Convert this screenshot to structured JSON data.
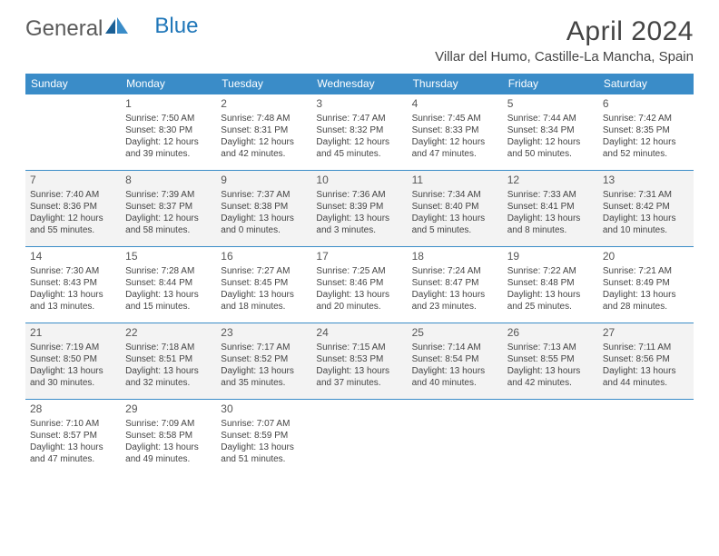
{
  "brand": {
    "part1": "General",
    "part2": "Blue"
  },
  "title": "April 2024",
  "location": "Villar del Humo, Castille-La Mancha, Spain",
  "colors": {
    "header_bg": "#3a8cc8",
    "header_text": "#ffffff",
    "text": "#444444",
    "shade_bg": "#f3f3f3",
    "logo_gray": "#5a5a5a",
    "logo_blue": "#2077b9",
    "page_bg": "#ffffff"
  },
  "calendar": {
    "day_headers": [
      "Sunday",
      "Monday",
      "Tuesday",
      "Wednesday",
      "Thursday",
      "Friday",
      "Saturday"
    ],
    "weeks": [
      {
        "shade": false,
        "cells": [
          {
            "num": "",
            "sunrise": "",
            "sunset": "",
            "daylight": ""
          },
          {
            "num": "1",
            "sunrise": "Sunrise: 7:50 AM",
            "sunset": "Sunset: 8:30 PM",
            "daylight": "Daylight: 12 hours and 39 minutes."
          },
          {
            "num": "2",
            "sunrise": "Sunrise: 7:48 AM",
            "sunset": "Sunset: 8:31 PM",
            "daylight": "Daylight: 12 hours and 42 minutes."
          },
          {
            "num": "3",
            "sunrise": "Sunrise: 7:47 AM",
            "sunset": "Sunset: 8:32 PM",
            "daylight": "Daylight: 12 hours and 45 minutes."
          },
          {
            "num": "4",
            "sunrise": "Sunrise: 7:45 AM",
            "sunset": "Sunset: 8:33 PM",
            "daylight": "Daylight: 12 hours and 47 minutes."
          },
          {
            "num": "5",
            "sunrise": "Sunrise: 7:44 AM",
            "sunset": "Sunset: 8:34 PM",
            "daylight": "Daylight: 12 hours and 50 minutes."
          },
          {
            "num": "6",
            "sunrise": "Sunrise: 7:42 AM",
            "sunset": "Sunset: 8:35 PM",
            "daylight": "Daylight: 12 hours and 52 minutes."
          }
        ]
      },
      {
        "shade": true,
        "cells": [
          {
            "num": "7",
            "sunrise": "Sunrise: 7:40 AM",
            "sunset": "Sunset: 8:36 PM",
            "daylight": "Daylight: 12 hours and 55 minutes."
          },
          {
            "num": "8",
            "sunrise": "Sunrise: 7:39 AM",
            "sunset": "Sunset: 8:37 PM",
            "daylight": "Daylight: 12 hours and 58 minutes."
          },
          {
            "num": "9",
            "sunrise": "Sunrise: 7:37 AM",
            "sunset": "Sunset: 8:38 PM",
            "daylight": "Daylight: 13 hours and 0 minutes."
          },
          {
            "num": "10",
            "sunrise": "Sunrise: 7:36 AM",
            "sunset": "Sunset: 8:39 PM",
            "daylight": "Daylight: 13 hours and 3 minutes."
          },
          {
            "num": "11",
            "sunrise": "Sunrise: 7:34 AM",
            "sunset": "Sunset: 8:40 PM",
            "daylight": "Daylight: 13 hours and 5 minutes."
          },
          {
            "num": "12",
            "sunrise": "Sunrise: 7:33 AM",
            "sunset": "Sunset: 8:41 PM",
            "daylight": "Daylight: 13 hours and 8 minutes."
          },
          {
            "num": "13",
            "sunrise": "Sunrise: 7:31 AM",
            "sunset": "Sunset: 8:42 PM",
            "daylight": "Daylight: 13 hours and 10 minutes."
          }
        ]
      },
      {
        "shade": false,
        "cells": [
          {
            "num": "14",
            "sunrise": "Sunrise: 7:30 AM",
            "sunset": "Sunset: 8:43 PM",
            "daylight": "Daylight: 13 hours and 13 minutes."
          },
          {
            "num": "15",
            "sunrise": "Sunrise: 7:28 AM",
            "sunset": "Sunset: 8:44 PM",
            "daylight": "Daylight: 13 hours and 15 minutes."
          },
          {
            "num": "16",
            "sunrise": "Sunrise: 7:27 AM",
            "sunset": "Sunset: 8:45 PM",
            "daylight": "Daylight: 13 hours and 18 minutes."
          },
          {
            "num": "17",
            "sunrise": "Sunrise: 7:25 AM",
            "sunset": "Sunset: 8:46 PM",
            "daylight": "Daylight: 13 hours and 20 minutes."
          },
          {
            "num": "18",
            "sunrise": "Sunrise: 7:24 AM",
            "sunset": "Sunset: 8:47 PM",
            "daylight": "Daylight: 13 hours and 23 minutes."
          },
          {
            "num": "19",
            "sunrise": "Sunrise: 7:22 AM",
            "sunset": "Sunset: 8:48 PM",
            "daylight": "Daylight: 13 hours and 25 minutes."
          },
          {
            "num": "20",
            "sunrise": "Sunrise: 7:21 AM",
            "sunset": "Sunset: 8:49 PM",
            "daylight": "Daylight: 13 hours and 28 minutes."
          }
        ]
      },
      {
        "shade": true,
        "cells": [
          {
            "num": "21",
            "sunrise": "Sunrise: 7:19 AM",
            "sunset": "Sunset: 8:50 PM",
            "daylight": "Daylight: 13 hours and 30 minutes."
          },
          {
            "num": "22",
            "sunrise": "Sunrise: 7:18 AM",
            "sunset": "Sunset: 8:51 PM",
            "daylight": "Daylight: 13 hours and 32 minutes."
          },
          {
            "num": "23",
            "sunrise": "Sunrise: 7:17 AM",
            "sunset": "Sunset: 8:52 PM",
            "daylight": "Daylight: 13 hours and 35 minutes."
          },
          {
            "num": "24",
            "sunrise": "Sunrise: 7:15 AM",
            "sunset": "Sunset: 8:53 PM",
            "daylight": "Daylight: 13 hours and 37 minutes."
          },
          {
            "num": "25",
            "sunrise": "Sunrise: 7:14 AM",
            "sunset": "Sunset: 8:54 PM",
            "daylight": "Daylight: 13 hours and 40 minutes."
          },
          {
            "num": "26",
            "sunrise": "Sunrise: 7:13 AM",
            "sunset": "Sunset: 8:55 PM",
            "daylight": "Daylight: 13 hours and 42 minutes."
          },
          {
            "num": "27",
            "sunrise": "Sunrise: 7:11 AM",
            "sunset": "Sunset: 8:56 PM",
            "daylight": "Daylight: 13 hours and 44 minutes."
          }
        ]
      },
      {
        "shade": false,
        "cells": [
          {
            "num": "28",
            "sunrise": "Sunrise: 7:10 AM",
            "sunset": "Sunset: 8:57 PM",
            "daylight": "Daylight: 13 hours and 47 minutes."
          },
          {
            "num": "29",
            "sunrise": "Sunrise: 7:09 AM",
            "sunset": "Sunset: 8:58 PM",
            "daylight": "Daylight: 13 hours and 49 minutes."
          },
          {
            "num": "30",
            "sunrise": "Sunrise: 7:07 AM",
            "sunset": "Sunset: 8:59 PM",
            "daylight": "Daylight: 13 hours and 51 minutes."
          },
          {
            "num": "",
            "sunrise": "",
            "sunset": "",
            "daylight": ""
          },
          {
            "num": "",
            "sunrise": "",
            "sunset": "",
            "daylight": ""
          },
          {
            "num": "",
            "sunrise": "",
            "sunset": "",
            "daylight": ""
          },
          {
            "num": "",
            "sunrise": "",
            "sunset": "",
            "daylight": ""
          }
        ]
      }
    ]
  }
}
